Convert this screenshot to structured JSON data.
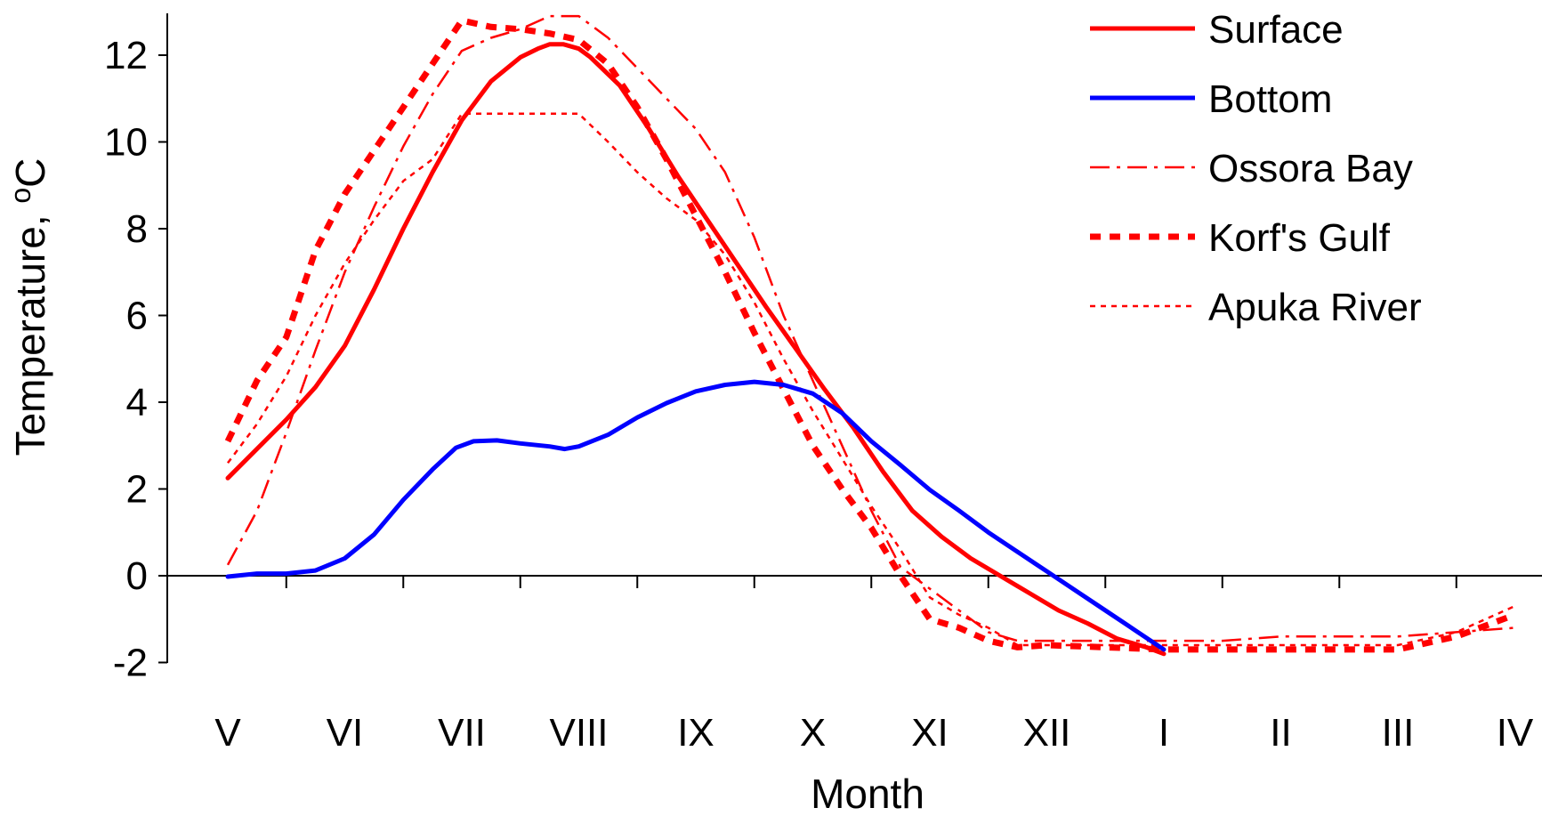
{
  "chart_data": {
    "type": "line",
    "title": "",
    "xlabel": "Month",
    "ylabel": "Temperature, ",
    "ylabel_sup": "o",
    "ylabel_unit": "C",
    "ylim": [
      -2,
      12
    ],
    "yticks": [
      -2,
      0,
      2,
      4,
      6,
      8,
      10,
      12
    ],
    "ytick_labels": [
      "-2",
      "0",
      "2",
      "4",
      "6",
      "8",
      "10",
      "12"
    ],
    "categories": [
      "V",
      "VI",
      "VII",
      "VIII",
      "IX",
      "X",
      "XI",
      "XII",
      "I",
      "II",
      "III",
      "IV"
    ],
    "xlim": [
      0,
      11
    ],
    "grid": false,
    "legend_position": "top-right",
    "series": [
      {
        "name": "Surface",
        "color": "#ff0000",
        "style": "solid",
        "points": [
          [
            0,
            2.25
          ],
          [
            0.5,
            3.6
          ],
          [
            0.75,
            4.35
          ],
          [
            1,
            5.3
          ],
          [
            1.25,
            6.6
          ],
          [
            1.5,
            8.0
          ],
          [
            1.75,
            9.3
          ],
          [
            2,
            10.5
          ],
          [
            2.25,
            11.4
          ],
          [
            2.5,
            11.95
          ],
          [
            2.65,
            12.15
          ],
          [
            2.75,
            12.25
          ],
          [
            2.87,
            12.25
          ],
          [
            3,
            12.15
          ],
          [
            3.1,
            11.95
          ],
          [
            3.35,
            11.3
          ],
          [
            3.6,
            10.3
          ],
          [
            3.85,
            9.2
          ],
          [
            4.1,
            8.2
          ],
          [
            4.35,
            7.2
          ],
          [
            4.6,
            6.2
          ],
          [
            4.85,
            5.25
          ],
          [
            5.1,
            4.3
          ],
          [
            5.35,
            3.4
          ],
          [
            5.6,
            2.4
          ],
          [
            5.85,
            1.5
          ],
          [
            6.1,
            0.9
          ],
          [
            6.35,
            0.4
          ],
          [
            6.6,
            0.0
          ],
          [
            6.85,
            -0.4
          ],
          [
            7.1,
            -0.8
          ],
          [
            7.35,
            -1.1
          ],
          [
            7.6,
            -1.45
          ],
          [
            7.85,
            -1.65
          ],
          [
            8,
            -1.8
          ]
        ]
      },
      {
        "name": "Bottom",
        "color": "#0000ff",
        "style": "solid",
        "points": [
          [
            0,
            -0.02
          ],
          [
            0.25,
            0.05
          ],
          [
            0.5,
            0.05
          ],
          [
            0.75,
            0.12
          ],
          [
            1,
            0.4
          ],
          [
            1.25,
            0.95
          ],
          [
            1.5,
            1.75
          ],
          [
            1.75,
            2.45
          ],
          [
            1.95,
            2.95
          ],
          [
            2.1,
            3.1
          ],
          [
            2.3,
            3.12
          ],
          [
            2.5,
            3.05
          ],
          [
            2.75,
            2.98
          ],
          [
            2.88,
            2.92
          ],
          [
            3,
            2.98
          ],
          [
            3.25,
            3.25
          ],
          [
            3.5,
            3.65
          ],
          [
            3.75,
            3.98
          ],
          [
            4,
            4.25
          ],
          [
            4.25,
            4.4
          ],
          [
            4.5,
            4.47
          ],
          [
            4.75,
            4.4
          ],
          [
            5,
            4.2
          ],
          [
            5.25,
            3.75
          ],
          [
            5.5,
            3.1
          ],
          [
            5.75,
            2.55
          ],
          [
            6,
            1.98
          ],
          [
            6.25,
            1.5
          ],
          [
            6.5,
            1.0
          ],
          [
            6.75,
            0.55
          ],
          [
            7,
            0.1
          ],
          [
            7.25,
            -0.35
          ],
          [
            7.5,
            -0.8
          ],
          [
            7.75,
            -1.25
          ],
          [
            8,
            -1.7
          ]
        ]
      },
      {
        "name": "Ossora Bay",
        "color": "#ff0000",
        "style": "dashdot",
        "points": [
          [
            0,
            0.25
          ],
          [
            0.25,
            1.5
          ],
          [
            0.5,
            3.3
          ],
          [
            0.75,
            5.2
          ],
          [
            1,
            7.0
          ],
          [
            1.25,
            8.5
          ],
          [
            1.5,
            9.9
          ],
          [
            1.75,
            11.1
          ],
          [
            2,
            12.1
          ],
          [
            2.25,
            12.4
          ],
          [
            2.5,
            12.6
          ],
          [
            2.75,
            12.9
          ],
          [
            3,
            12.9
          ],
          [
            3.25,
            12.4
          ],
          [
            3.5,
            11.7
          ],
          [
            3.75,
            11.0
          ],
          [
            4,
            10.3
          ],
          [
            4.25,
            9.3
          ],
          [
            4.5,
            7.8
          ],
          [
            4.75,
            6.0
          ],
          [
            5,
            4.5
          ],
          [
            5.25,
            3.0
          ],
          [
            5.5,
            1.5
          ],
          [
            5.75,
            0.2
          ],
          [
            6,
            -0.3
          ],
          [
            6.25,
            -0.8
          ],
          [
            6.5,
            -1.3
          ],
          [
            6.75,
            -1.5
          ],
          [
            7,
            -1.5
          ],
          [
            7.5,
            -1.5
          ],
          [
            8,
            -1.5
          ],
          [
            8.5,
            -1.5
          ],
          [
            9,
            -1.4
          ],
          [
            9.5,
            -1.4
          ],
          [
            10,
            -1.4
          ],
          [
            10.5,
            -1.3
          ],
          [
            11,
            -1.2
          ]
        ]
      },
      {
        "name": "Korf's Gulf",
        "color": "#ff0000",
        "style": "dashed",
        "points": [
          [
            0,
            3.1
          ],
          [
            0.25,
            4.5
          ],
          [
            0.5,
            5.5
          ],
          [
            0.75,
            7.5
          ],
          [
            1,
            8.8
          ],
          [
            1.25,
            9.8
          ],
          [
            1.5,
            10.8
          ],
          [
            1.75,
            11.8
          ],
          [
            2,
            12.8
          ],
          [
            2.25,
            12.65
          ],
          [
            2.5,
            12.6
          ],
          [
            2.75,
            12.5
          ],
          [
            3,
            12.35
          ],
          [
            3.25,
            11.8
          ],
          [
            3.5,
            10.8
          ],
          [
            3.75,
            9.6
          ],
          [
            4,
            8.3
          ],
          [
            4.25,
            7.0
          ],
          [
            4.5,
            5.6
          ],
          [
            4.75,
            4.3
          ],
          [
            5,
            3.0
          ],
          [
            5.25,
            2.0
          ],
          [
            5.5,
            1.1
          ],
          [
            5.75,
            0.0
          ],
          [
            6,
            -1.0
          ],
          [
            6.25,
            -1.2
          ],
          [
            6.5,
            -1.5
          ],
          [
            6.75,
            -1.65
          ],
          [
            7,
            -1.6
          ],
          [
            7.5,
            -1.65
          ],
          [
            8,
            -1.7
          ],
          [
            8.5,
            -1.7
          ],
          [
            9,
            -1.7
          ],
          [
            9.5,
            -1.7
          ],
          [
            10,
            -1.7
          ],
          [
            10.5,
            -1.4
          ],
          [
            11,
            -0.9
          ]
        ]
      },
      {
        "name": "Apuka River",
        "color": "#ff0000",
        "style": "dotted",
        "points": [
          [
            0,
            2.6
          ],
          [
            0.25,
            3.5
          ],
          [
            0.5,
            4.6
          ],
          [
            0.75,
            6.0
          ],
          [
            1,
            7.2
          ],
          [
            1.25,
            8.2
          ],
          [
            1.5,
            9.1
          ],
          [
            1.75,
            9.6
          ],
          [
            2,
            10.65
          ],
          [
            2.5,
            10.65
          ],
          [
            3,
            10.65
          ],
          [
            3.25,
            10.0
          ],
          [
            3.5,
            9.3
          ],
          [
            3.75,
            8.7
          ],
          [
            4,
            8.2
          ],
          [
            4.25,
            7.4
          ],
          [
            4.5,
            6.3
          ],
          [
            4.75,
            5.0
          ],
          [
            5,
            3.8
          ],
          [
            5.25,
            2.7
          ],
          [
            5.5,
            1.6
          ],
          [
            5.75,
            0.6
          ],
          [
            6,
            -0.5
          ],
          [
            6.25,
            -0.9
          ],
          [
            6.5,
            -1.2
          ],
          [
            6.75,
            -1.6
          ],
          [
            7,
            -1.6
          ],
          [
            7.5,
            -1.6
          ],
          [
            8,
            -1.6
          ],
          [
            8.5,
            -1.6
          ],
          [
            9,
            -1.6
          ],
          [
            9.5,
            -1.6
          ],
          [
            10,
            -1.6
          ],
          [
            10.5,
            -1.3
          ],
          [
            11,
            -0.7
          ]
        ]
      }
    ]
  }
}
